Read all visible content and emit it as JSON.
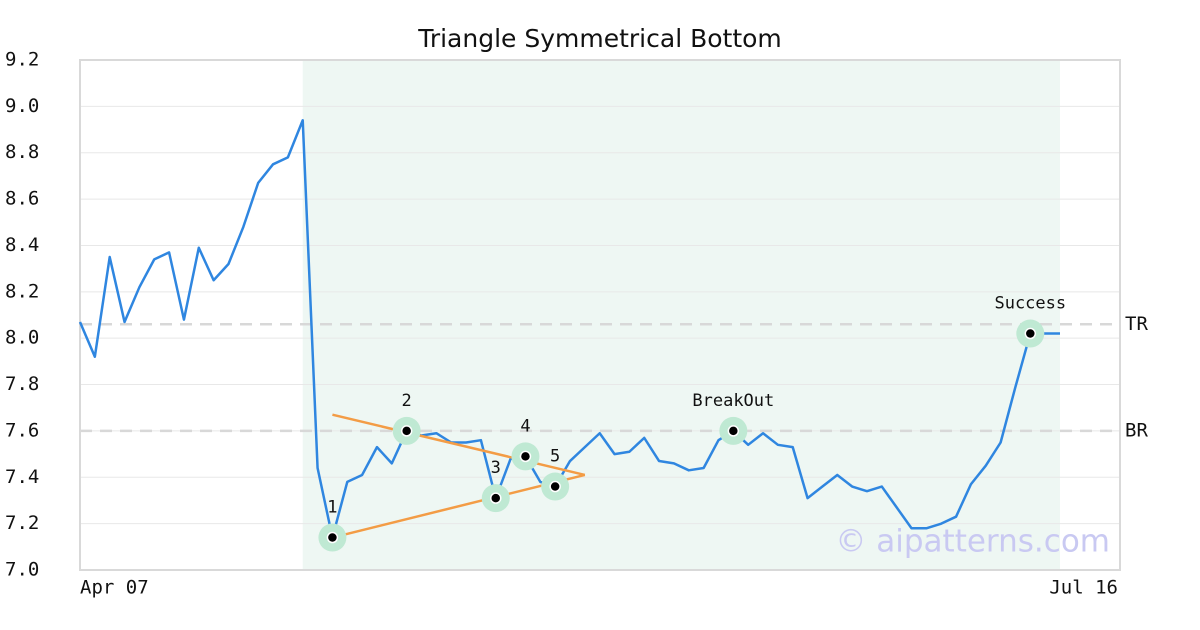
{
  "chart_data": {
    "type": "line",
    "title": "Triangle Symmetrical Bottom",
    "categories": [
      "Apr 07",
      null,
      null,
      null,
      null,
      null,
      null,
      null,
      null,
      null,
      null,
      null,
      null,
      null,
      null,
      null,
      null,
      null,
      null,
      null,
      null,
      null,
      null,
      null,
      null,
      null,
      null,
      null,
      null,
      null,
      null,
      null,
      null,
      null,
      null,
      null,
      null,
      null,
      null,
      null,
      null,
      null,
      null,
      null,
      null,
      null,
      null,
      null,
      null,
      null,
      null,
      null,
      null,
      null,
      null,
      null,
      null,
      null,
      null,
      null,
      null,
      null,
      null,
      null,
      null,
      null,
      "Jul 16"
    ],
    "values": [
      8.07,
      7.92,
      8.35,
      8.07,
      8.22,
      8.34,
      8.37,
      8.08,
      8.39,
      8.25,
      8.32,
      8.48,
      8.67,
      8.75,
      8.78,
      8.94,
      7.44,
      7.14,
      7.38,
      7.41,
      7.53,
      7.46,
      7.6,
      7.58,
      7.59,
      7.55,
      7.55,
      7.56,
      7.31,
      7.48,
      7.49,
      7.38,
      7.36,
      7.47,
      7.53,
      7.59,
      7.5,
      7.51,
      7.57,
      7.47,
      7.46,
      7.43,
      7.44,
      7.56,
      7.6,
      7.54,
      7.59,
      7.54,
      7.53,
      7.31,
      7.36,
      7.41,
      7.36,
      7.34,
      7.36,
      7.27,
      7.18,
      7.18,
      7.2,
      7.23,
      7.37,
      7.45,
      7.55,
      7.79,
      8.02,
      8.02,
      8.02
    ],
    "color": "#2f86e0",
    "ylim": [
      7.0,
      9.2
    ],
    "yticks": [
      {
        "value": 7.0,
        "label": "7.0"
      },
      7.2,
      7.4,
      7.6,
      7.8,
      {
        "value": 8.0,
        "label": "8.0"
      },
      8.2,
      8.4,
      8.6,
      8.8,
      {
        "value": 9.0,
        "label": "9.0"
      },
      9.2
    ],
    "grid": true,
    "shaded_span": [
      15,
      66
    ],
    "reference_lines": [
      {
        "label": "TR",
        "value": 8.06
      },
      {
        "label": "BR",
        "value": 7.6
      }
    ],
    "trendlines": [
      {
        "x": [
          17,
          34
        ],
        "values": [
          7.67,
          7.41
        ]
      },
      {
        "x": [
          17,
          34
        ],
        "values": [
          7.14,
          7.41
        ]
      }
    ],
    "trend_color": "#f39c45",
    "annotations": [
      {
        "label": "1",
        "x": 17,
        "y": 7.14
      },
      {
        "label": "2",
        "x": 22,
        "y": 7.6
      },
      {
        "label": "3",
        "x": 28,
        "y": 7.31
      },
      {
        "label": "4",
        "x": 30,
        "y": 7.49
      },
      {
        "label": "5",
        "x": 32,
        "y": 7.36
      },
      {
        "label": "BreakOut",
        "x": 44,
        "y": 7.6
      },
      {
        "label": "Success",
        "x": 64,
        "y": 8.02
      }
    ],
    "watermark": "© aipatterns.com"
  }
}
